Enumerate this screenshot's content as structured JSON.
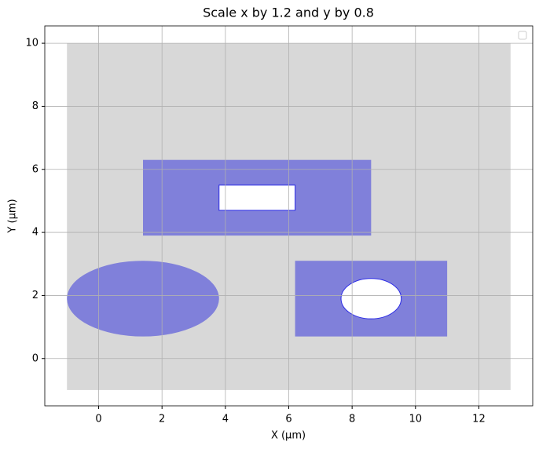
{
  "chart_data": {
    "type": "shapes",
    "title": "Scale x by 1.2 and y by 0.8",
    "x_label": "X (µm)",
    "y_label": "Y (µm)",
    "xlim": [
      -1.7,
      13.7
    ],
    "ylim": [
      -1.5,
      10.55
    ],
    "xticks": [
      0,
      2,
      4,
      6,
      8,
      10,
      12
    ],
    "yticks": [
      0,
      2,
      4,
      6,
      8,
      10
    ],
    "grid": true,
    "legend": "upper right",
    "shapes": [
      {
        "kind": "rect",
        "x0": -1,
        "x1": 13,
        "y0": -1,
        "y1": 10,
        "color": "#d8d8d8"
      },
      {
        "kind": "rect",
        "x0": 1.4,
        "x1": 8.6,
        "y0": 3.9,
        "y1": 6.3,
        "color": "#8080da"
      },
      {
        "kind": "rect",
        "x0": 3.8,
        "x1": 6.2,
        "y0": 4.7,
        "y1": 5.5,
        "color": "#ffffff",
        "edgecolor": "#2b2be6"
      },
      {
        "kind": "ellipse",
        "cx": 1.4,
        "cy": 1.9,
        "rx": 2.4,
        "ry": 1.2,
        "color": "#8080da"
      },
      {
        "kind": "rect",
        "x0": 6.2,
        "x1": 11,
        "y0": 0.7,
        "y1": 3.1,
        "color": "#8080da"
      },
      {
        "kind": "ellipse",
        "cx": 8.6,
        "cy": 1.9,
        "rx": 0.95,
        "ry": 0.64,
        "color": "#ffffff",
        "edgecolor": "#2b2be6"
      }
    ]
  }
}
